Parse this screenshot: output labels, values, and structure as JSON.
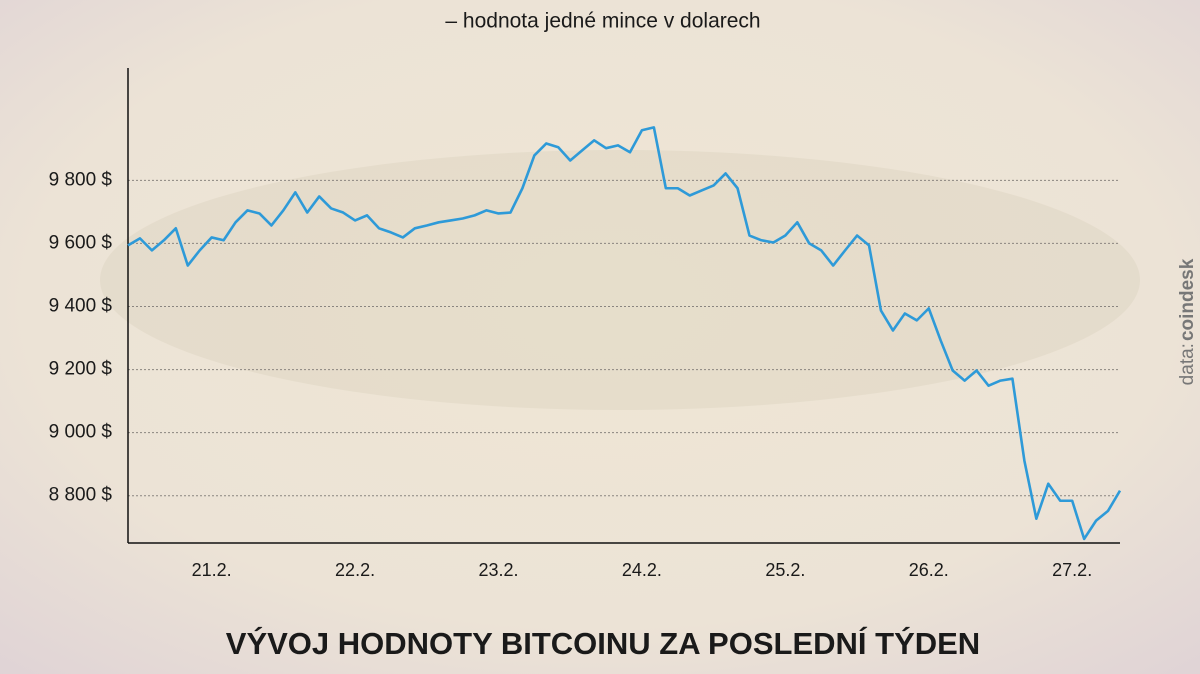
{
  "chart_data": {
    "type": "line",
    "subtitle": "– hodnota jedné mince v dolarech",
    "title": "VÝVOJ HODNOTY BITCOINU ZA POSLEDNÍ TÝDEN",
    "source_label": "data:",
    "source_name": "coindesk",
    "categories": [
      null,
      null,
      null,
      null,
      null,
      null,
      null,
      "21.2.",
      null,
      null,
      null,
      null,
      null,
      null,
      null,
      null,
      null,
      null,
      null,
      "22.2.",
      null,
      null,
      null,
      null,
      null,
      null,
      null,
      null,
      null,
      null,
      null,
      "23.2.",
      null,
      null,
      null,
      null,
      null,
      null,
      null,
      null,
      null,
      null,
      null,
      "24.2.",
      null,
      null,
      null,
      null,
      null,
      null,
      null,
      null,
      null,
      null,
      null,
      "25.2.",
      null,
      null,
      null,
      null,
      null,
      null,
      null,
      null,
      null,
      null,
      null,
      "26.2.",
      null,
      null,
      null,
      null,
      null,
      null,
      null,
      null,
      null,
      null,
      null,
      "27.2.",
      null,
      null,
      null,
      null
    ],
    "color": "#2e9ad8",
    "values": [
      9594,
      9616,
      9578,
      9610,
      9648,
      9530,
      9578,
      9619,
      9610,
      9667,
      9705,
      9695,
      9657,
      9705,
      9762,
      9698,
      9749,
      9711,
      9698,
      9673,
      9689,
      9648,
      9635,
      9619,
      9648,
      9657,
      9667,
      9673,
      9679,
      9689,
      9705,
      9695,
      9698,
      9775,
      9879,
      9917,
      9905,
      9863,
      9895,
      9927,
      9902,
      9911,
      9889,
      9959,
      9968,
      9775,
      9775,
      9752,
      9768,
      9784,
      9822,
      9775,
      9625,
      9610,
      9603,
      9625,
      9667,
      9600,
      9578,
      9530,
      9578,
      9625,
      9594,
      9387,
      9324,
      9378,
      9356,
      9394,
      9292,
      9197,
      9165,
      9197,
      9149,
      9165,
      9171,
      8911,
      8727,
      8838,
      8784,
      8784,
      8663,
      8721,
      8752,
      8816
    ],
    "ylim": [
      8650,
      10150
    ],
    "yticks": [
      {
        "value": 8800,
        "label": "8 800 $"
      },
      {
        "value": 9000,
        "label": "9 000 $"
      },
      {
        "value": 9200,
        "label": "9 200 $"
      },
      {
        "value": 9400,
        "label": "9 400 $"
      },
      {
        "value": 9600,
        "label": "9 600 $"
      },
      {
        "value": 9800,
        "label": "9 800 $"
      }
    ],
    "grid": true
  }
}
